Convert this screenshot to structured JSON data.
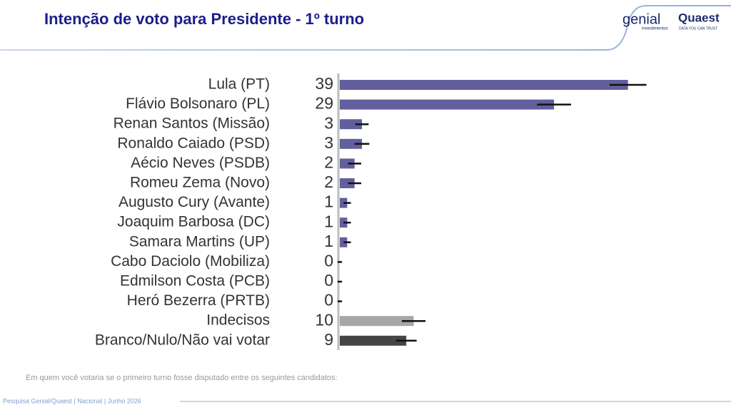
{
  "chart_data": {
    "type": "bar",
    "orientation": "horizontal",
    "title": "Intenção de voto para Presidente - 1º turno",
    "categories": [
      "Lula (PT)",
      "Flávio Bolsonaro (PL)",
      "Renan Santos (Missão)",
      "Ronaldo Caiado (PSD)",
      "Aécio Neves (PSDB)",
      "Romeu Zema (Novo)",
      "Augusto Cury (Avante)",
      "Joaquim Barbosa (DC)",
      "Samara Martins (UP)",
      "Cabo Daciolo (Mobiliza)",
      "Edmilson Costa (PCB)",
      "Heró Bezerra (PRTB)",
      "Indecisos",
      "Branco/Nulo/Não vai votar"
    ],
    "values": [
      39,
      29,
      3,
      3,
      2,
      2,
      1,
      1,
      1,
      0,
      0,
      0,
      10,
      9
    ],
    "errors": [
      2.5,
      2.3,
      0.9,
      1,
      0.9,
      0.9,
      0.5,
      0.5,
      0.5,
      0.3,
      0.3,
      0.3,
      1.6,
      1.4
    ],
    "colors": [
      "#625f9e",
      "#625f9e",
      "#625f9e",
      "#625f9e",
      "#625f9e",
      "#625f9e",
      "#625f9e",
      "#625f9e",
      "#625f9e",
      "#625f9e",
      "#625f9e",
      "#625f9e",
      "#a6a6a6",
      "#454545"
    ],
    "xlim": [
      0,
      40
    ],
    "note": "Em quem você votaria se o primeiro turno fosse disputado entre os seguintes candidatos:"
  },
  "footer": "Pesquisa Genial/Quaest | Nacional | Junho 2026",
  "logos": {
    "genial": "genial",
    "genial_sub": "investimentos",
    "quaest": "Quaest",
    "quaest_sub": "DATA YOU CAN TRUST"
  }
}
